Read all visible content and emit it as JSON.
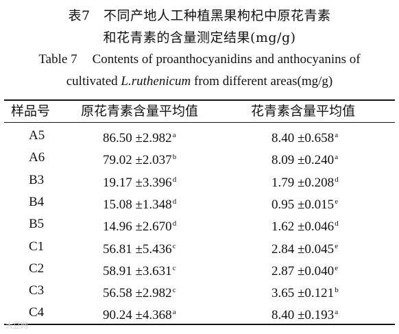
{
  "caption": {
    "cn_line1": "表7　不同产地人工种植黑果枸杞中原花青素",
    "cn_line2": "和花青素的含量测定结果(mg/g)",
    "en_number": "Table 7",
    "en_line1_text": "Contents of proanthocyanidins and anthocyanins of",
    "en_line2_pre": "cultivated ",
    "en_line2_italic": "L.ruthenicum",
    "en_line2_post": " from different areas(mg/g)"
  },
  "table": {
    "headers": [
      "样品号",
      "原花青素含量平均值",
      "花青素含量平均值"
    ],
    "rows": [
      {
        "code": "A5",
        "pro": "86.50 ±2.982",
        "pro_sup": "a",
        "ant": "8.40 ±0.658",
        "ant_sup": "a"
      },
      {
        "code": "A6",
        "pro": "79.02 ±2.037",
        "pro_sup": "b",
        "ant": "8.09 ±0.240",
        "ant_sup": "a"
      },
      {
        "code": "B3",
        "pro": "19.17 ±3.396",
        "pro_sup": "d",
        "ant": "1.79 ±0.208",
        "ant_sup": "d"
      },
      {
        "code": "B4",
        "pro": "15.08 ±1.348",
        "pro_sup": "d",
        "ant": "0.95 ±0.015",
        "ant_sup": "e"
      },
      {
        "code": "B5",
        "pro": "14.96 ±2.670",
        "pro_sup": "d",
        "ant": "1.62 ±0.046",
        "ant_sup": "d"
      },
      {
        "code": "C1",
        "pro": "56.81 ±5.436",
        "pro_sup": "c",
        "ant": "2.84 ±0.045",
        "ant_sup": "e"
      },
      {
        "code": "C2",
        "pro": "58.91 ±3.631",
        "pro_sup": "c",
        "ant": "2.87 ±0.040",
        "ant_sup": "e"
      },
      {
        "code": "C3",
        "pro": "56.58 ±2.982",
        "pro_sup": "c",
        "ant": "3.65 ±0.121",
        "ant_sup": "b"
      },
      {
        "code": "C4",
        "pro": "90.24 ±4.368",
        "pro_sup": "a",
        "ant": "8.40 ±0.193",
        "ant_sup": "a"
      }
    ]
  },
  "watermark": "大豆网"
}
